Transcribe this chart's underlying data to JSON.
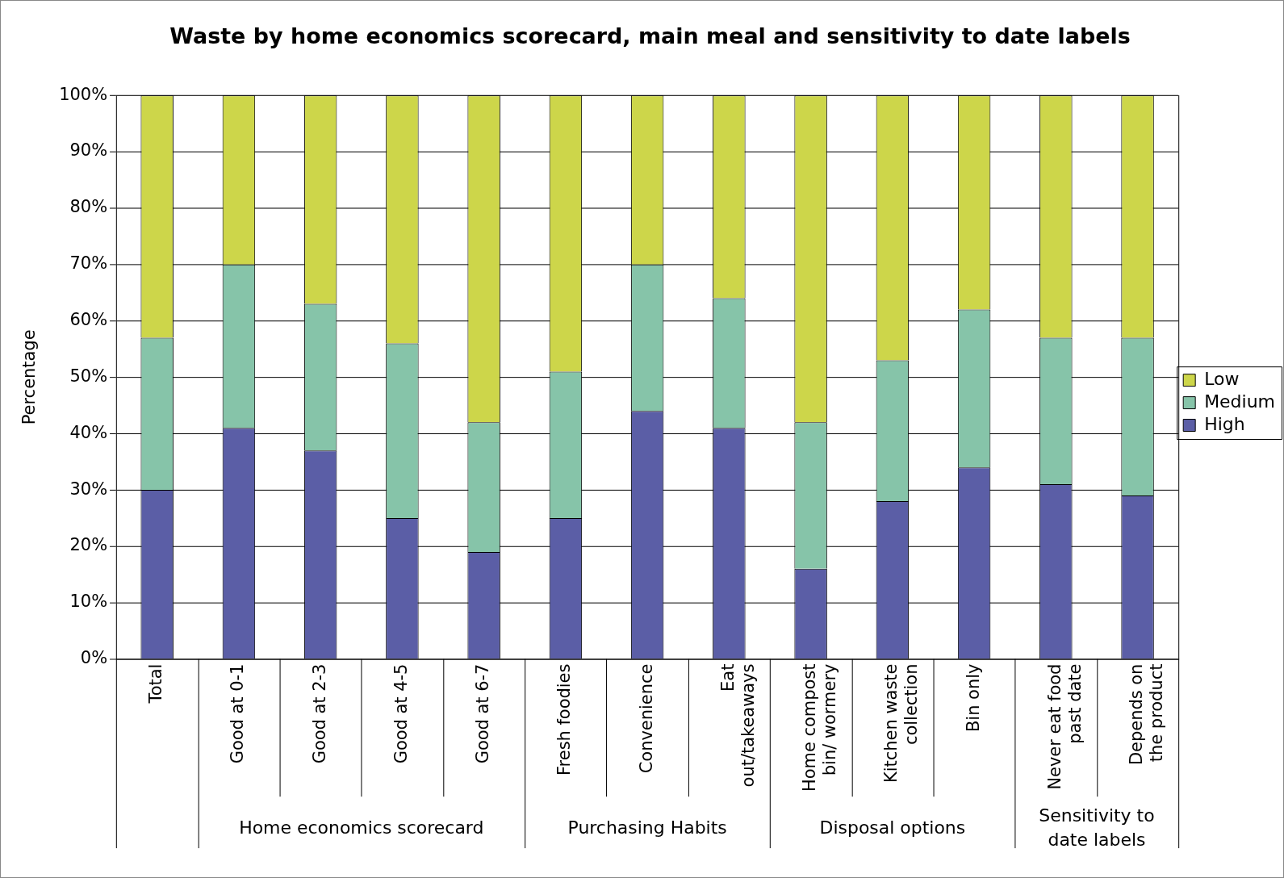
{
  "chart_data": {
    "type": "bar",
    "title": "Waste by home economics scorecard, main meal and sensitivity to date labels",
    "ylabel": "Percentage",
    "categories": [
      "Total",
      "Good at 0-1",
      "Good at 2-3",
      "Good at 4-5",
      "Good at 6-7",
      "Fresh foodies",
      "Convenience",
      "Eat\nout/takeaways",
      "Home compost\nbin/ wormery",
      "Kitchen waste\ncollection",
      "Bin only",
      "Never eat food\npast date",
      "Depends on\nthe product"
    ],
    "series": [
      {
        "name": "High",
        "color": "#5b5ea6",
        "values": [
          30,
          41,
          37,
          25,
          19,
          25,
          44,
          41,
          16,
          28,
          34,
          31,
          29
        ]
      },
      {
        "name": "Medium",
        "color": "#86c4a9",
        "values": [
          27,
          29,
          26,
          31,
          23,
          26,
          26,
          23,
          26,
          25,
          28,
          26,
          28
        ]
      },
      {
        "name": "Low",
        "color": "#cdd64a",
        "values": [
          43,
          30,
          37,
          44,
          58,
          49,
          30,
          36,
          58,
          47,
          38,
          43,
          43
        ]
      }
    ],
    "stacked": true,
    "ylim": [
      0,
      100
    ],
    "yticks": [
      {
        "value": 0,
        "label": "0%"
      },
      {
        "value": 10,
        "label": "10%"
      },
      {
        "value": 20,
        "label": "20%"
      },
      {
        "value": 30,
        "label": "30%"
      },
      {
        "value": 40,
        "label": "40%"
      },
      {
        "value": 50,
        "label": "50%"
      },
      {
        "value": 60,
        "label": "60%"
      },
      {
        "value": 70,
        "label": "70%"
      },
      {
        "value": 80,
        "label": "80%"
      },
      {
        "value": 90,
        "label": "90%"
      },
      {
        "value": 100,
        "label": "100%"
      }
    ],
    "grid": "y",
    "legend": "right",
    "annotations": [
      "Home economics scorecard",
      "Purchasing Habits",
      "Disposal options",
      "Sensitivity to\ndate labels"
    ]
  }
}
